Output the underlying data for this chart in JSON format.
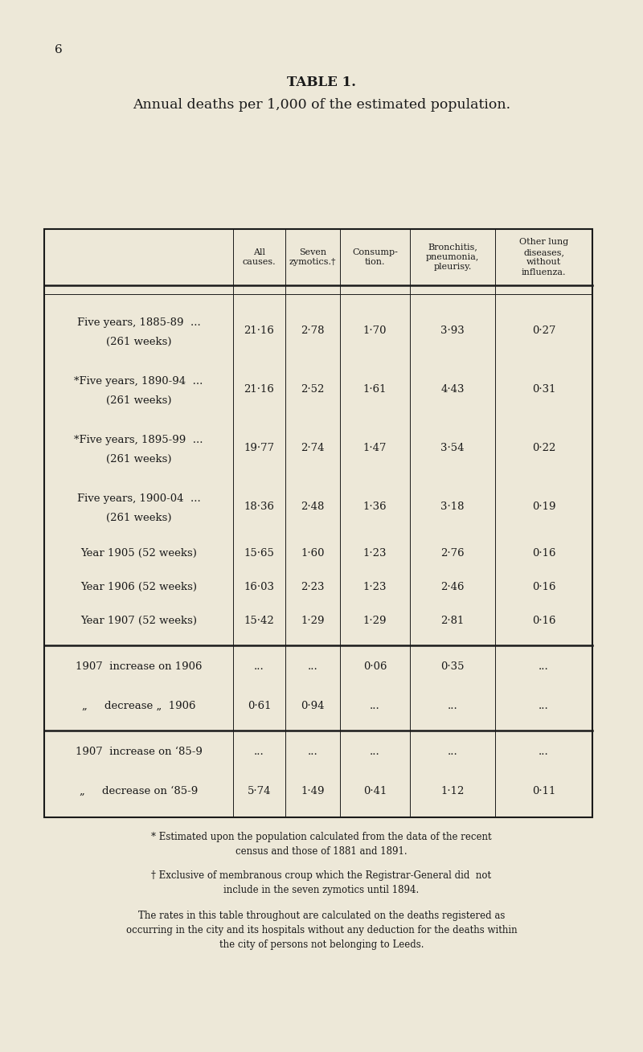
{
  "page_number": "6",
  "title": "TABLE 1.",
  "subtitle": "Annual deaths per 1,000 of the estimated population.",
  "bg_color": "#ede8d8",
  "text_color": "#1a1a1a",
  "col_headers": [
    "All\ncauses.",
    "Seven\nzymotics.†",
    "Consump-\ntion.",
    "Bronchitis,\npneumonia,\npleurisy.",
    "Other lung\ndiseases,\nwithout\ninfluenza."
  ],
  "rows": [
    {
      "label_line1": "Five years, 1885-89  ...",
      "label_line2": "(261 weeks)"
    },
    {
      "label_line1": "*Five years, 1890-94  ...",
      "label_line2": "(261 weeks)"
    },
    {
      "label_line1": "*Five years, 1895-99  ...",
      "label_line2": "(261 weeks)"
    },
    {
      "label_line1": "Five years, 1900-04  ...",
      "label_line2": "(261 weeks)"
    },
    {
      "label_line1": "Year 1905 (52 weeks)",
      "label_line2": ""
    },
    {
      "label_line1": "Year 1906 (52 weeks)",
      "label_line2": ""
    },
    {
      "label_line1": "Year 1907 (52 weeks)",
      "label_line2": ""
    }
  ],
  "row_values": [
    [
      "21·16",
      "2·78",
      "1·70",
      "3·93",
      "0·27"
    ],
    [
      "21·16",
      "2·52",
      "1·61",
      "4·43",
      "0·31"
    ],
    [
      "19·77",
      "2·74",
      "1·47",
      "3·54",
      "0·22"
    ],
    [
      "18·36",
      "2·48",
      "1·36",
      "3·18",
      "0·19"
    ],
    [
      "15·65",
      "1·60",
      "1·23",
      "2·76",
      "0·16"
    ],
    [
      "16·03",
      "2·23",
      "1·23",
      "2·46",
      "0·16"
    ],
    [
      "15·42",
      "1·29",
      "1·29",
      "2·81",
      "0·16"
    ]
  ],
  "rows2_labels": [
    "1907  increase on 1906",
    "„     decrease „  1906"
  ],
  "rows2_values": [
    [
      "...",
      "...",
      "0·06",
      "0·35",
      "..."
    ],
    [
      "0·61",
      "0·94",
      "...",
      "...",
      "..."
    ]
  ],
  "rows3_labels": [
    "1907  increase on ‘85-9",
    "„     decrease on ‘85-9"
  ],
  "rows3_values": [
    [
      "...",
      "...",
      "...",
      "...",
      "..."
    ],
    [
      "5·74",
      "1·49",
      "0·41",
      "1·12",
      "0·11"
    ]
  ],
  "footnote1": "* Estimated upon the population calculated from the data of the recent\ncensus and those of 1881 and 1891.",
  "footnote2": "† Exclusive of membranous croup which the Registrar-General did  not\ninclude in the seven zymotics until 1894.",
  "footnote3": "The rates in this table throughout are calculated on the deaths registered as\noccurring in the city and its hospitals without any deduction for the deaths within\nthe city of persons not belonging to Leeds.",
  "fig_width": 8.0,
  "fig_height": 13.09,
  "dpi": 100
}
